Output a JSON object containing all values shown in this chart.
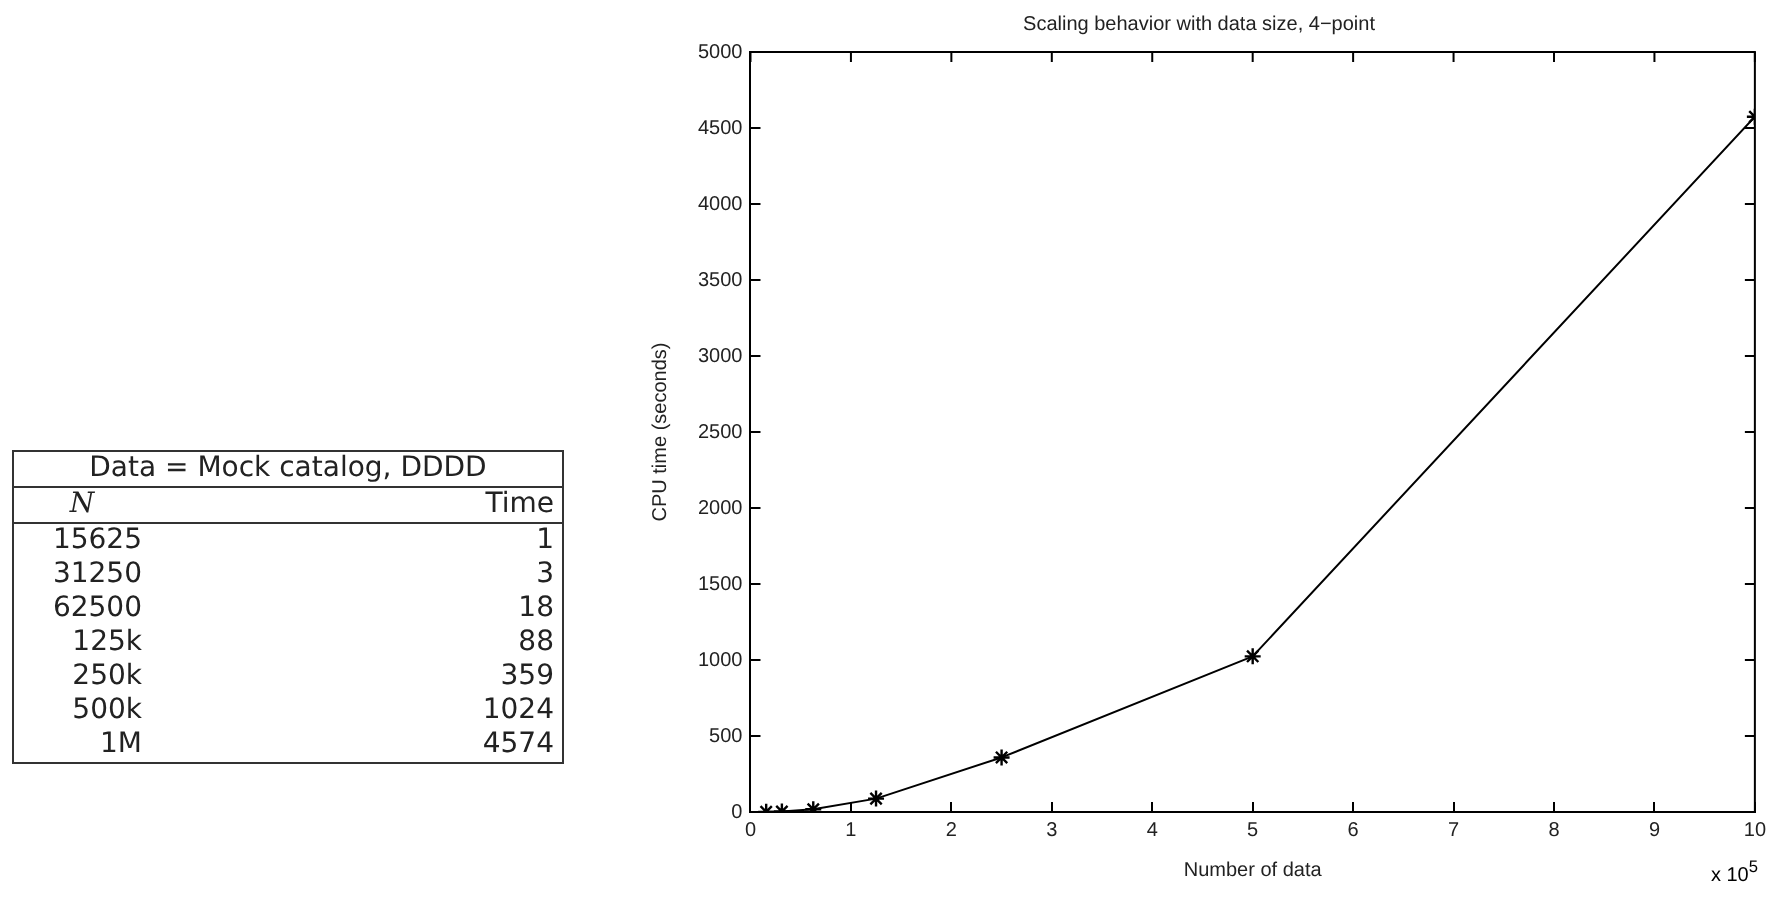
{
  "chart_data": {
    "type": "line",
    "title": "Scaling behavior with data size, 4−point",
    "xlabel": "Number of data",
    "ylabel": "CPU time (seconds)",
    "x": [
      0.15625,
      0.3125,
      0.625,
      1.25,
      2.5,
      5,
      10
    ],
    "series": [
      {
        "color": "#000000",
        "values": [
          1,
          3,
          18,
          88,
          359,
          1024,
          4574
        ]
      }
    ],
    "xlim": [
      0,
      10
    ],
    "xticks": [
      0,
      1,
      2,
      3,
      4,
      5,
      6,
      7,
      8,
      9,
      10
    ],
    "ylim": [
      0,
      5000
    ],
    "yticks": [
      0,
      500,
      1000,
      1500,
      2000,
      2500,
      3000,
      3500,
      4000,
      4500,
      5000
    ],
    "marker": "cross",
    "line_style": "solid",
    "grid": false,
    "legend": false,
    "annotations": [
      "x 10$^{5}$",
      "Data = Mock catalog, DDDD",
      "N",
      "Time",
      "15625",
      "1",
      "31250",
      "3",
      "62500",
      "18",
      "125k",
      "88",
      "250k",
      "359",
      "500k",
      "1024",
      "1M",
      "4574"
    ]
  }
}
